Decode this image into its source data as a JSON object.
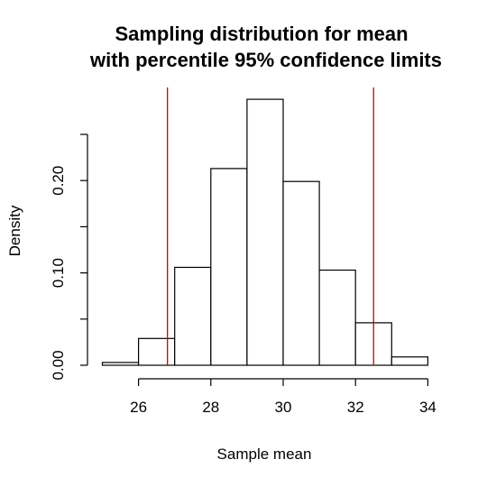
{
  "chart_data": {
    "type": "bar",
    "title_line1": "Sampling distribution for mean",
    "title_line2": "with percentile 95% confidence limits",
    "xlabel": "Sample mean",
    "ylabel": "Density",
    "xlim": [
      25,
      34
    ],
    "ylim": [
      0,
      0.25
    ],
    "x_ticks": [
      26,
      28,
      30,
      32,
      34
    ],
    "y_ticks": [
      0.0,
      0.05,
      0.1,
      0.15,
      0.2,
      0.25
    ],
    "y_tick_labels": [
      {
        "value": 0.0,
        "label": "0.00"
      },
      {
        "value": 0.1,
        "label": "0.10"
      },
      {
        "value": 0.2,
        "label": "0.20"
      }
    ],
    "bins": [
      {
        "start": 25,
        "end": 26,
        "density": 0.003
      },
      {
        "start": 26,
        "end": 27,
        "density": 0.029
      },
      {
        "start": 27,
        "end": 28,
        "density": 0.106
      },
      {
        "start": 28,
        "end": 29,
        "density": 0.213
      },
      {
        "start": 29,
        "end": 30,
        "density": 0.288
      },
      {
        "start": 30,
        "end": 31,
        "density": 0.199
      },
      {
        "start": 31,
        "end": 32,
        "density": 0.103
      },
      {
        "start": 32,
        "end": 33,
        "density": 0.046
      },
      {
        "start": 33,
        "end": 34,
        "density": 0.009
      }
    ],
    "confidence_limits": [
      26.8,
      32.5
    ],
    "limit_color": "#cc0000",
    "bar_fill": "#ffffff",
    "bar_stroke": "#000000",
    "grid": false
  }
}
